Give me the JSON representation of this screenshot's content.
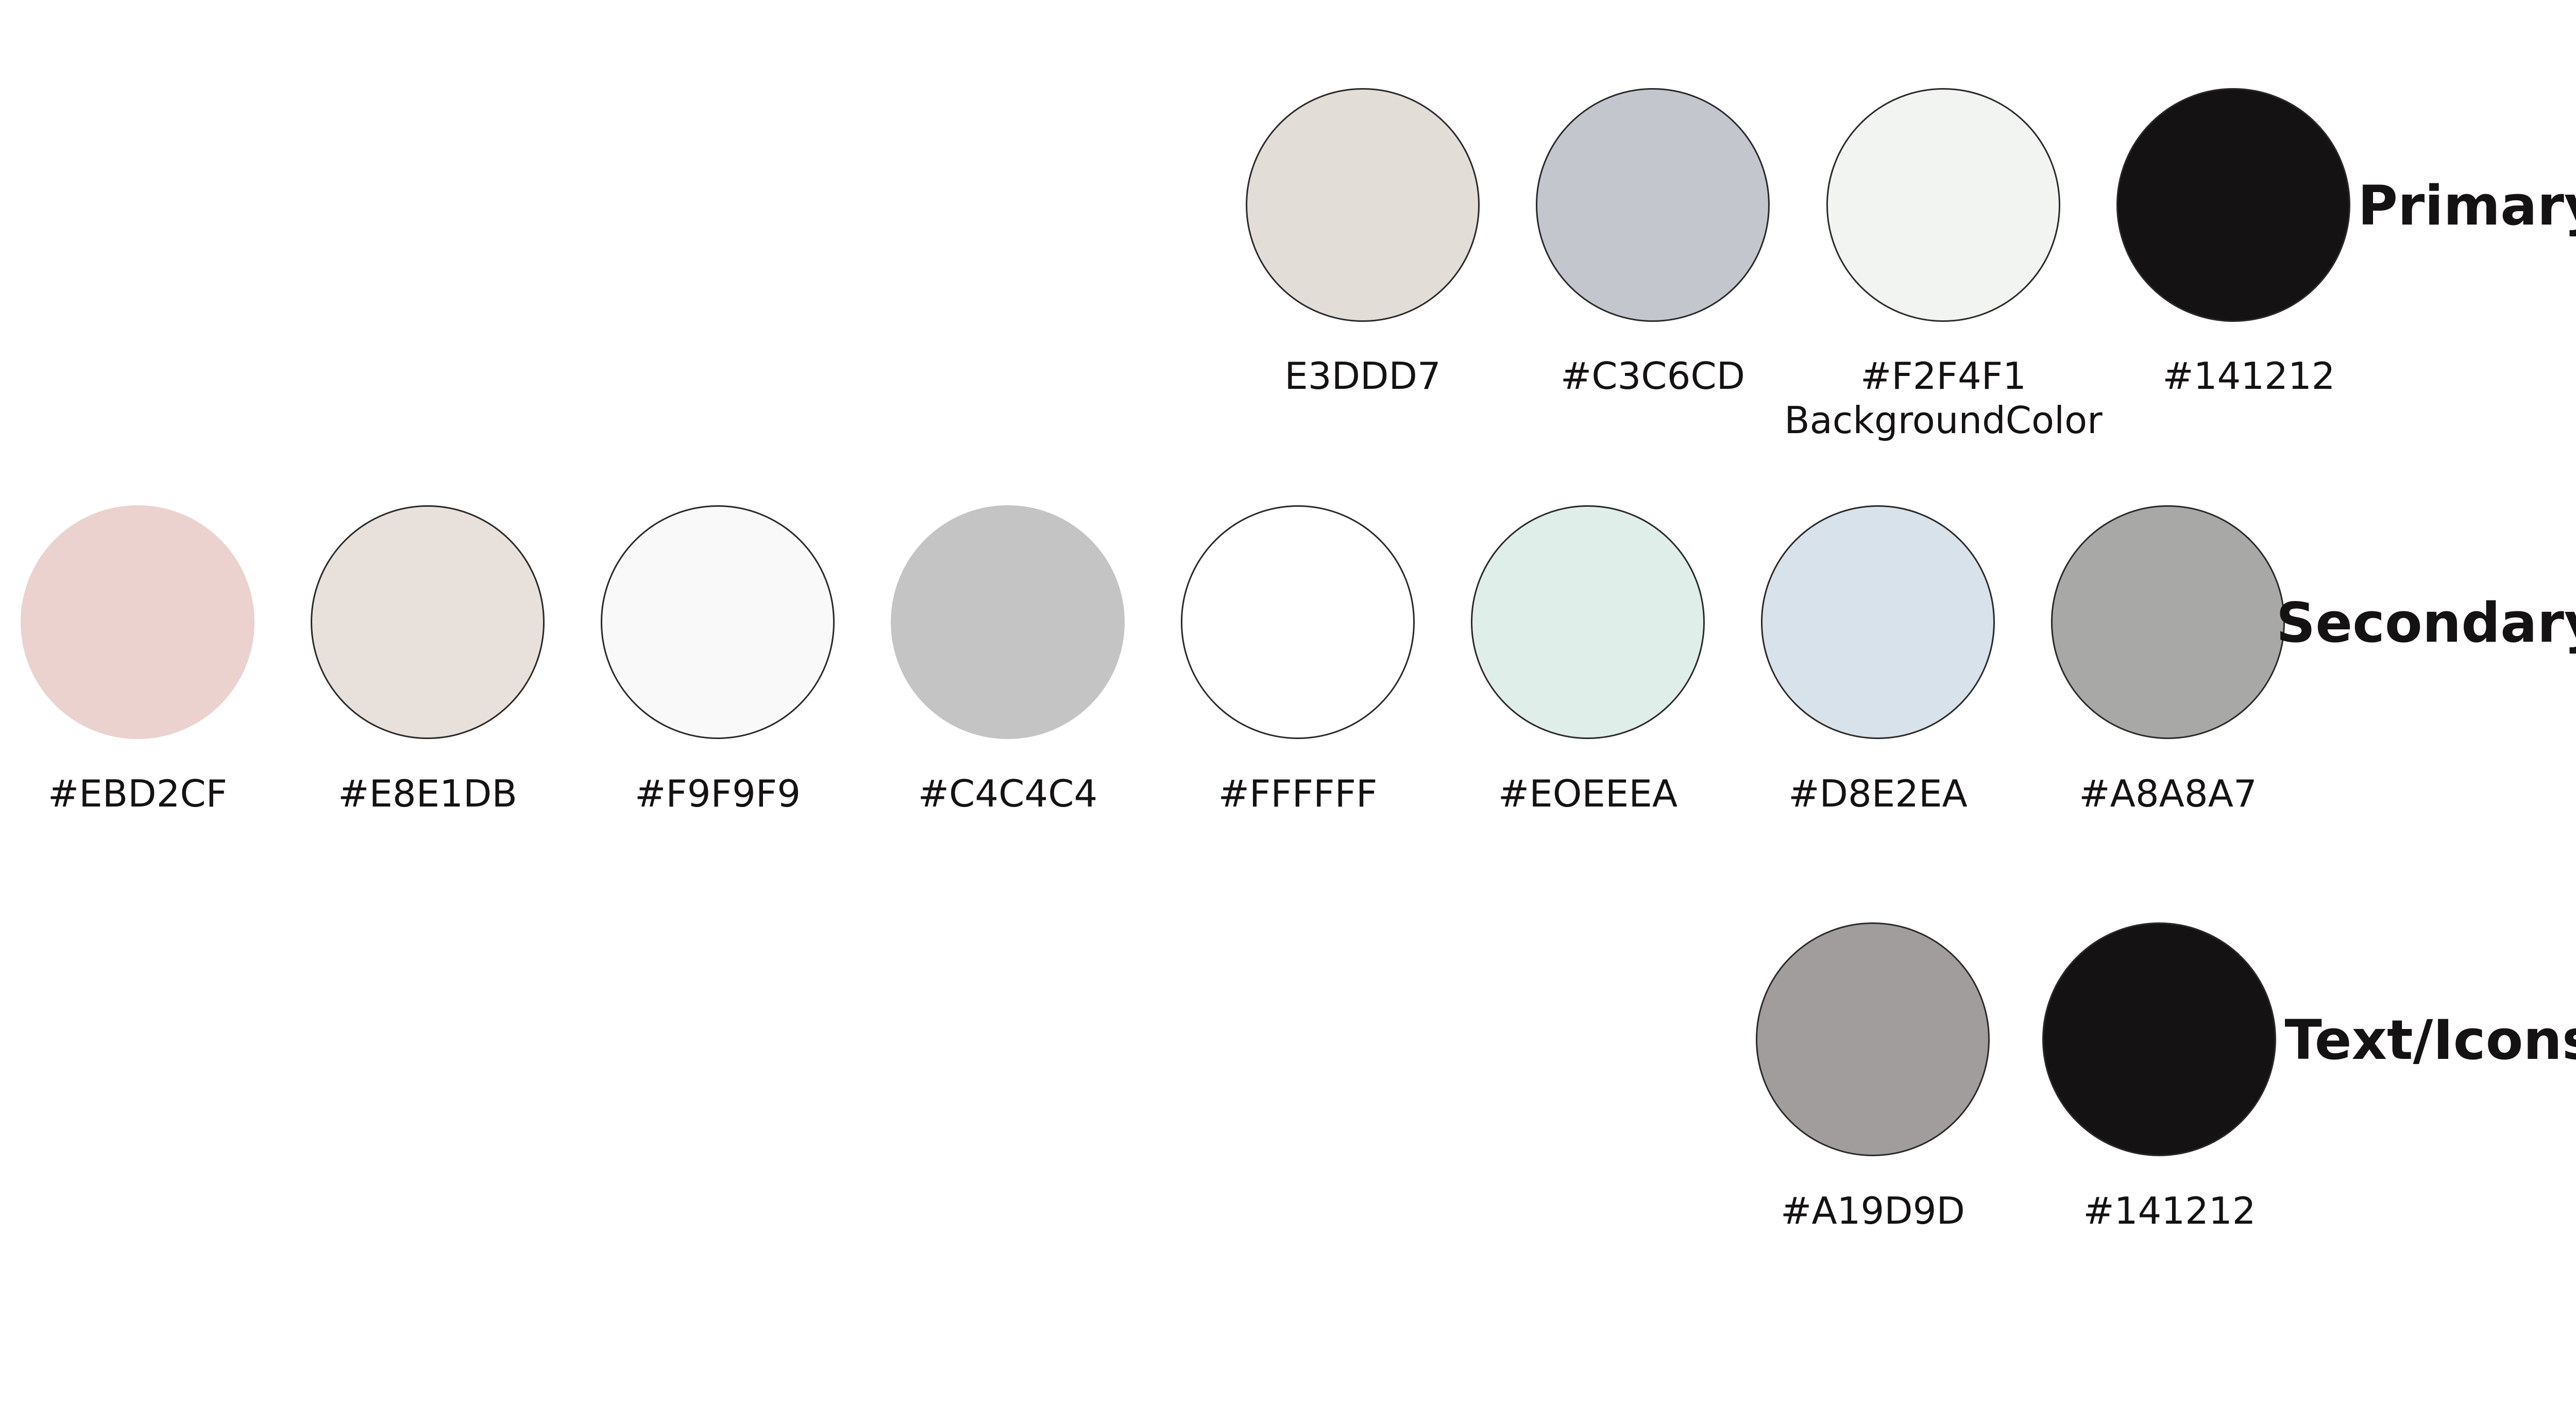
{
  "palette": {
    "primary": {
      "title": "Primary",
      "swatches": [
        {
          "label": "E3DDD7",
          "color": "#E3DDD7"
        },
        {
          "label": "#C3C6CD",
          "color": "#C3C6CD"
        },
        {
          "label": "#F2F4F1",
          "sublabel": "BackgroundColor",
          "color": "#F2F4F1"
        },
        {
          "label": "#141212",
          "color": "#141212"
        }
      ]
    },
    "secondary": {
      "title": "Secondary",
      "swatches": [
        {
          "label": "#EBD2CF",
          "color": "#EBD2CF"
        },
        {
          "label": "#E8E1DB",
          "color": "#E8E1DB"
        },
        {
          "label": "#F9F9F9",
          "color": "#F9F9F9"
        },
        {
          "label": "#C4C4C4",
          "color": "#C4C4C4"
        },
        {
          "label": "#FFFFFF",
          "color": "#FFFFFF"
        },
        {
          "label": "#EOEEEA",
          "color": "#E0EEEA"
        },
        {
          "label": "#D8E2EA",
          "color": "#D8E2EA"
        },
        {
          "label": "#A8A8A7",
          "color": "#A8A8A7"
        }
      ]
    },
    "text_icons": {
      "title": "Text/Icons",
      "swatches": [
        {
          "label": "#A19D9D",
          "color": "#A19D9D"
        },
        {
          "label": "#141212",
          "color": "#141212"
        }
      ]
    }
  }
}
